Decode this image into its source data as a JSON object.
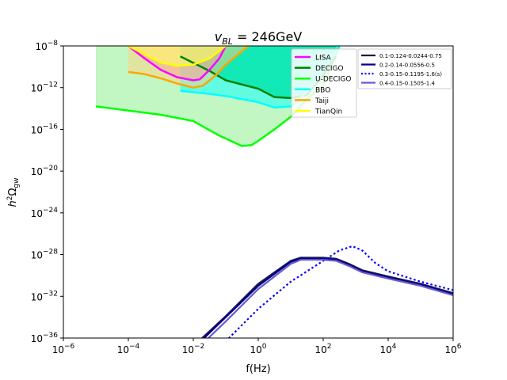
{
  "chart_data": {
    "type": "line",
    "title_main": "v",
    "title_sub": "BL",
    "title_rest": " = 246GeV",
    "xlabel": "f(Hz)",
    "ylabel_main": "h",
    "ylabel_sup": "2",
    "ylabel_omega": "Ω",
    "ylabel_sub": "gw",
    "x_scale": "log",
    "y_scale": "log",
    "xlim_exp": [
      -6,
      6
    ],
    "ylim_exp": [
      -36,
      -8
    ],
    "x_tick_exps": [
      -6,
      -4,
      -2,
      0,
      2,
      4,
      6
    ],
    "y_tick_exps": [
      -36,
      -32,
      -28,
      -24,
      -20,
      -16,
      -12,
      -8
    ],
    "tick_base": "10",
    "detector_legend": [
      {
        "label": "LISA",
        "color": "#ff00ff"
      },
      {
        "label": "DECIGO",
        "color": "#008000"
      },
      {
        "label": "U-DECIGO",
        "color": "#00ff00"
      },
      {
        "label": "BBO",
        "color": "#00ffff"
      },
      {
        "label": "Taiji",
        "color": "#ffa500"
      },
      {
        "label": "TianQin",
        "color": "#ffff00"
      }
    ],
    "sensitivity_curves": [
      {
        "name": "U-DECIGO",
        "color": "#00ff00",
        "fill": "#90ee90",
        "fill_opacity": 0.55,
        "points": [
          [
            -5,
            -13.8
          ],
          [
            -3,
            -14.6
          ],
          [
            -2,
            -15.2
          ],
          [
            -1.2,
            -16.6
          ],
          [
            -0.5,
            -17.6
          ],
          [
            -0.2,
            -17.5
          ],
          [
            0,
            -17.1
          ],
          [
            0.5,
            -16.0
          ],
          [
            1,
            -14.8
          ],
          [
            1.5,
            -13.1
          ],
          [
            2,
            -11.8
          ],
          [
            2.5,
            -8.0
          ]
        ]
      },
      {
        "name": "DECIGO",
        "color": "#008000",
        "fill": "#00c957",
        "fill_opacity": 0.8,
        "points": [
          [
            -2.4,
            -9.0
          ],
          [
            -1.5,
            -10.4
          ],
          [
            -1,
            -11.3
          ],
          [
            0,
            -12.1
          ],
          [
            0.5,
            -12.9
          ],
          [
            1,
            -13.0
          ],
          [
            1.5,
            -12.7
          ],
          [
            2,
            -10.8
          ],
          [
            2.4,
            -9.0
          ]
        ]
      },
      {
        "name": "BBO",
        "color": "#00ffff",
        "fill": "#00ffff",
        "fill_opacity": 0.5,
        "points": [
          [
            -2.4,
            -12.3
          ],
          [
            -1.5,
            -12.6
          ],
          [
            -1,
            -12.8
          ],
          [
            0,
            -13.4
          ],
          [
            0.5,
            -13.9
          ],
          [
            1,
            -13.8
          ],
          [
            1.5,
            -12.4
          ],
          [
            2,
            -10.3
          ],
          [
            2.5,
            -8.0
          ]
        ]
      },
      {
        "name": "LISA",
        "color": "#ff00ff",
        "fill": "#ff69b4",
        "fill_opacity": 0.5,
        "points": [
          [
            -4.0,
            -8.0
          ],
          [
            -3.5,
            -9.2
          ],
          [
            -3.0,
            -10.3
          ],
          [
            -2.5,
            -11.0
          ],
          [
            -2.0,
            -11.3
          ],
          [
            -1.8,
            -11.2
          ],
          [
            -1.5,
            -10.3
          ],
          [
            -1.2,
            -9.2
          ],
          [
            -1.0,
            -8.0
          ]
        ]
      },
      {
        "name": "Taiji",
        "color": "#ffa500",
        "fill": "#ffd27f",
        "fill_opacity": 0.5,
        "points": [
          [
            -4.0,
            -10.5
          ],
          [
            -3.5,
            -10.7
          ],
          [
            -3.0,
            -11.1
          ],
          [
            -2.5,
            -11.6
          ],
          [
            -2.0,
            -12.0
          ],
          [
            -1.7,
            -11.8
          ],
          [
            -1.3,
            -10.8
          ],
          [
            -1.0,
            -9.8
          ],
          [
            -0.5,
            -8.5
          ],
          [
            -0.3,
            -8.0
          ]
        ]
      },
      {
        "name": "TianQin",
        "color": "#ffff00",
        "fill": "#ffff66",
        "fill_opacity": 0.6,
        "points": [
          [
            -4.0,
            -8.0
          ],
          [
            -3.5,
            -8.8
          ],
          [
            -3.0,
            -9.6
          ],
          [
            -2.5,
            -9.9
          ],
          [
            -2.0,
            -9.8
          ],
          [
            -1.5,
            -9.2
          ],
          [
            -1.0,
            -8.0
          ]
        ]
      }
    ],
    "series_legend_title": "",
    "series": [
      {
        "name": "0.1-0.124-0.0244-0.75",
        "color": "#1a1a4e",
        "dash": "solid",
        "points": [
          [
            -2.4,
            -38.0
          ],
          [
            -2,
            -36.8
          ],
          [
            -1,
            -33.9
          ],
          [
            0,
            -30.8
          ],
          [
            1,
            -28.6
          ],
          [
            1.3,
            -28.3
          ],
          [
            1.6,
            -28.3
          ],
          [
            2,
            -28.3
          ],
          [
            2.4,
            -28.4
          ],
          [
            2.8,
            -28.9
          ],
          [
            3.2,
            -29.5
          ],
          [
            4,
            -30.1
          ],
          [
            5,
            -30.8
          ],
          [
            6,
            -31.7
          ]
        ]
      },
      {
        "name": "0.2-0.14-0.0556-0.5",
        "color": "#00008b",
        "dash": "solid",
        "points": [
          [
            -2.3,
            -38.0
          ],
          [
            -2,
            -37.0
          ],
          [
            -1,
            -34.0
          ],
          [
            0,
            -31.0
          ],
          [
            1,
            -28.7
          ],
          [
            1.3,
            -28.4
          ],
          [
            1.6,
            -28.4
          ],
          [
            2,
            -28.4
          ],
          [
            2.4,
            -28.5
          ],
          [
            2.8,
            -29.0
          ],
          [
            3.2,
            -29.6
          ],
          [
            4,
            -30.2
          ],
          [
            5,
            -30.9
          ],
          [
            6,
            -31.8
          ]
        ]
      },
      {
        "name": "0.3-0.15-0.1195-1.6(s)",
        "color": "#0000ff",
        "dash": "dotted",
        "points": [
          [
            -1.6,
            -38.0
          ],
          [
            -1,
            -36.3
          ],
          [
            0,
            -33.2
          ],
          [
            1,
            -30.6
          ],
          [
            2,
            -28.6
          ],
          [
            2.5,
            -27.6
          ],
          [
            2.9,
            -27.2
          ],
          [
            3.2,
            -27.6
          ],
          [
            3.6,
            -28.8
          ],
          [
            4,
            -29.6
          ],
          [
            5,
            -30.6
          ],
          [
            6,
            -31.4
          ]
        ]
      },
      {
        "name": "0.4-0.15-0.1505-1.4",
        "color": "#6a5acd",
        "dash": "solid",
        "points": [
          [
            -2.2,
            -38.0
          ],
          [
            -2,
            -37.4
          ],
          [
            -1,
            -34.4
          ],
          [
            0,
            -31.3
          ],
          [
            1,
            -28.9
          ],
          [
            1.3,
            -28.5
          ],
          [
            1.6,
            -28.5
          ],
          [
            2,
            -28.5
          ],
          [
            2.4,
            -28.6
          ],
          [
            2.8,
            -29.1
          ],
          [
            3.2,
            -29.7
          ],
          [
            4,
            -30.3
          ],
          [
            5,
            -31.0
          ],
          [
            6,
            -31.9
          ]
        ]
      }
    ]
  }
}
